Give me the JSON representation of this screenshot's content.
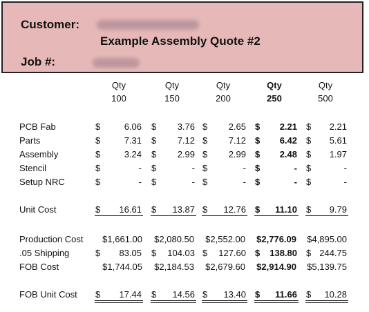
{
  "header": {
    "customer_label": "Customer:",
    "job_label": "Job #:",
    "title": "Example Assembly Quote #2"
  },
  "qty_header": "Qty",
  "quantities": [
    "100",
    "150",
    "200",
    "250",
    "500"
  ],
  "bold_column": 3,
  "currency": "$",
  "rows": [
    {
      "label": "PCB Fab",
      "values": [
        "6.06",
        "3.76",
        "2.65",
        "2.21",
        "2.21"
      ]
    },
    {
      "label": "Parts",
      "values": [
        "7.31",
        "7.12",
        "7.12",
        "6.42",
        "5.61"
      ]
    },
    {
      "label": "Assembly",
      "values": [
        "3.24",
        "2.99",
        "2.99",
        "2.48",
        "1.97"
      ]
    },
    {
      "label": "Stencil",
      "values": [
        "-",
        "-",
        "-",
        "-",
        "-"
      ]
    },
    {
      "label": "Setup NRC",
      "values": [
        "-",
        "-",
        "-",
        "-",
        "-"
      ]
    },
    {
      "label": "Unit Cost",
      "values": [
        "16.61",
        "13.87",
        "12.76",
        "11.10",
        "9.79"
      ],
      "underline": "single"
    },
    {
      "label": "Production Cost",
      "values": [
        "1,661.00",
        "2,080.50",
        "2,552.00",
        "2,776.09",
        "4,895.00"
      ],
      "compact": true
    },
    {
      "label": ".05 Shipping",
      "values": [
        "83.05",
        "104.03",
        "127.60",
        "138.80",
        "244.75"
      ]
    },
    {
      "label": "FOB Cost",
      "values": [
        "1,744.05",
        "2,184.53",
        "2,679.60",
        "2,914.90",
        "5,139.75"
      ],
      "compact": true
    },
    {
      "label": "FOB Unit Cost",
      "values": [
        "17.44",
        "14.56",
        "13.40",
        "11.66",
        "10.28"
      ],
      "underline": "double"
    }
  ]
}
